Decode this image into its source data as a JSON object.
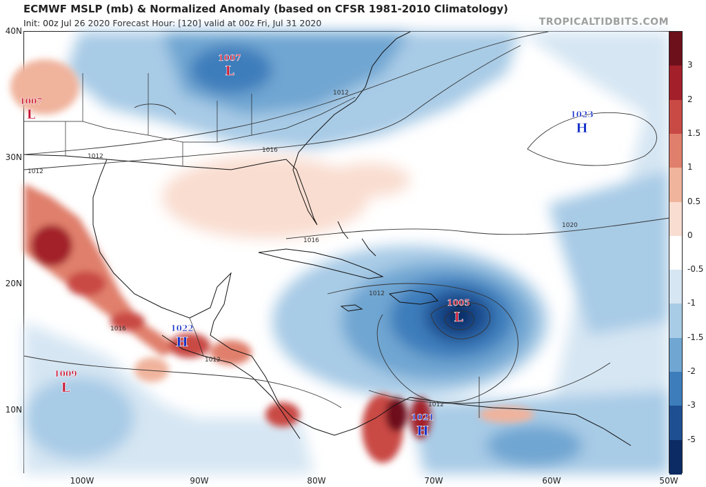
{
  "header": {
    "title": "ECMWF MSLP (mb) & Normalized Anomaly (based on CFSR 1981-2010 Climatology)",
    "subtitle": "Init: 00z Jul 26 2020   Forecast Hour: [120]   valid at 00z Fri, Jul 31 2020",
    "site": "TROPICALTIDBITS.COM"
  },
  "axes": {
    "lat_labels": [
      "40N",
      "30N",
      "20N",
      "10N"
    ],
    "lon_labels": [
      "100W",
      "90W",
      "80W",
      "70W",
      "60W",
      "50W"
    ]
  },
  "colorbar": {
    "labels": [
      "3",
      "2",
      "1.5",
      "1",
      "0.5",
      "0",
      "-0.5",
      "-1",
      "-1.5",
      "-2",
      "-3",
      "-5"
    ],
    "colors": [
      "#6e0f1c",
      "#a3202b",
      "#c94a45",
      "#e07f6c",
      "#f0b39c",
      "#f9ddd0",
      "#ffffff",
      "#d6e6f3",
      "#a8cbe6",
      "#6fa6d2",
      "#3d7dbb",
      "#1d4f92",
      "#0c2a63"
    ]
  },
  "pressure_centers": [
    {
      "type": "L",
      "value": "1007",
      "color": "#c8102e"
    },
    {
      "type": "L",
      "value": "1007",
      "color": "#c8102e"
    },
    {
      "type": "H",
      "value": "1023",
      "color": "#1530c8"
    },
    {
      "type": "L",
      "value": "1005",
      "color": "#c8102e"
    },
    {
      "type": "H",
      "value": "1022",
      "color": "#1530c8"
    },
    {
      "type": "L",
      "value": "1009",
      "color": "#c8102e"
    },
    {
      "type": "H",
      "value": "1021",
      "color": "#1530c8"
    }
  ],
  "isobar_labels": [
    "1012",
    "1012",
    "1016",
    "1012",
    "1016",
    "1020",
    "1012",
    "1016",
    "1012",
    "1012"
  ]
}
